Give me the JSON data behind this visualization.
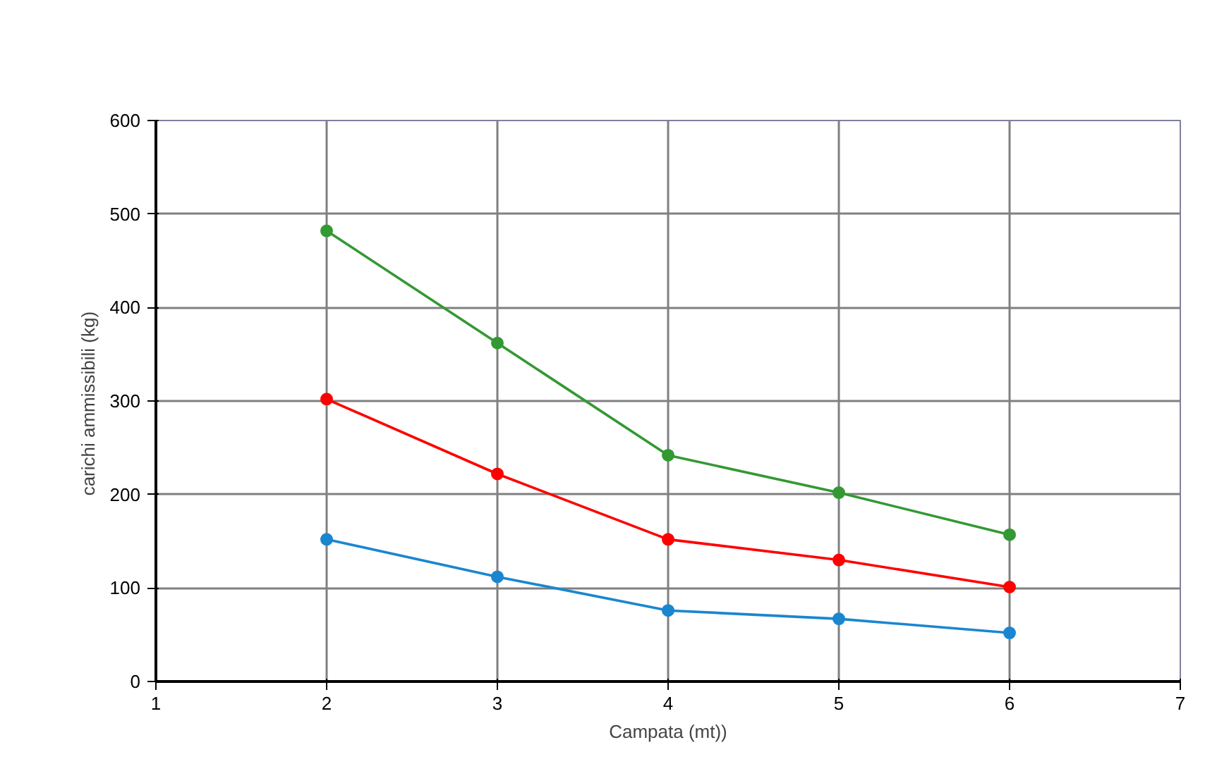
{
  "chart_data": {
    "type": "line",
    "xlabel": "Campata (mt))",
    "ylabel": "carichi ammissibili  (kg)",
    "x": [
      2,
      3,
      4,
      5,
      6
    ],
    "series": [
      {
        "color": "#339933",
        "values": [
          482,
          362,
          242,
          202,
          157
        ]
      },
      {
        "color": "#ff0000",
        "values": [
          302,
          222,
          152,
          130,
          101
        ]
      },
      {
        "color": "#1a86d0",
        "values": [
          152,
          112,
          76,
          67,
          52
        ]
      }
    ],
    "xlim": [
      1,
      7
    ],
    "xticks": [
      1,
      2,
      3,
      4,
      5,
      6,
      7
    ],
    "ylim": [
      0,
      600
    ],
    "yticks": [
      0,
      100,
      200,
      300,
      400,
      500,
      600
    ],
    "grid": true,
    "marker": "circle",
    "line_style": "solid"
  }
}
